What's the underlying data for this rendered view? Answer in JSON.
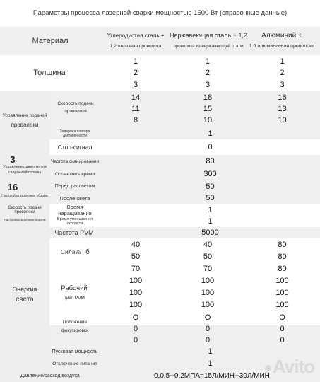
{
  "title": "Параметры процесса лазерной сварки мощностью 1500 Вт (справочные данные)",
  "header": {
    "material": "Материал",
    "col1_line1": "Углеродистая сталь +",
    "col1_line2": "1,2 железная проволока",
    "col2_line1": "Нержавеющая сталь + 1,2",
    "col2_line2": "проволока из нержавеющей стали",
    "col3_line1": "Алюминий +",
    "col3_line2": "1.6 алюминиевая проволока"
  },
  "thickness": {
    "label": "Толщина",
    "rows": [
      [
        "1",
        "1",
        "1"
      ],
      [
        "2",
        "2",
        "2"
      ],
      [
        "3",
        "3",
        "3"
      ]
    ]
  },
  "wire_control": {
    "label_line1": "Управление подачей",
    "label_line2": "проволоки",
    "speed_line1": "Скорость подачи",
    "speed_line2": "проволоки",
    "speed_rows": [
      [
        "14",
        "18",
        "16"
      ],
      [
        "11",
        "15",
        "13"
      ],
      [
        "8",
        "10",
        "10"
      ]
    ],
    "delay_label": "Задержка повтора долговечности",
    "delay_value": "1",
    "stop_label": "Стоп-сигнал",
    "stop_value": "0"
  },
  "welding_control": {
    "number": "3",
    "label_line1": "Управление двигателем",
    "label_line2": "сварочной головы",
    "scan_label": "Частота сканирования",
    "scan_value": "80",
    "stop_time_label": "Остановить время",
    "stop_time_value": "300"
  },
  "laser_setting": {
    "number": "16",
    "label": "Настройка задержки обзора",
    "before_label": "Перед рассветом",
    "before_value": "50",
    "after_label": "После света",
    "after_value": "50"
  },
  "feed_speed": {
    "label_line1": "Скорость подачи проволоки",
    "label_line2": "Настройка задержки подачи",
    "buildup_label": "Время наращивания",
    "buildup_value": "1",
    "reduce_label": "Время уменьшения скорости",
    "reduce_value": "1"
  },
  "pwm": {
    "label": "Частота PVM",
    "value": "5000"
  },
  "energy": {
    "label_line1": "Энергия",
    "label_line2": "света",
    "power_label": "Сила%",
    "power_icon": "б",
    "power_rows": [
      [
        "40",
        "40",
        "80"
      ],
      [
        "50",
        "50",
        "80"
      ],
      [
        "70",
        "70",
        "80"
      ]
    ],
    "duty_line1": "Рабочий",
    "duty_line2": "цикл PVM",
    "duty_rows": [
      [
        "100",
        "100",
        "100"
      ],
      [
        "100",
        "100",
        "100"
      ],
      [
        "100",
        "100",
        "100"
      ]
    ],
    "focus_line1": "Положение",
    "focus_line2": "фокусировки",
    "focus_rows": [
      [
        "O",
        "O",
        "O"
      ],
      [
        "0",
        "0",
        "0"
      ],
      [
        "0",
        "0",
        "0"
      ]
    ],
    "start_power_label": "Пусковая мощность",
    "start_power_value": "1",
    "power_off_label": "Отключение питания",
    "power_off_value": "1"
  },
  "pressure": {
    "label": "Давление/расход воздуха",
    "value": "0,0,5--0,2МПА=15Л/МИН--30Л/МИН"
  },
  "watermark": "Avito",
  "colors": {
    "band_gray": "#efefef",
    "text": "#222222"
  }
}
